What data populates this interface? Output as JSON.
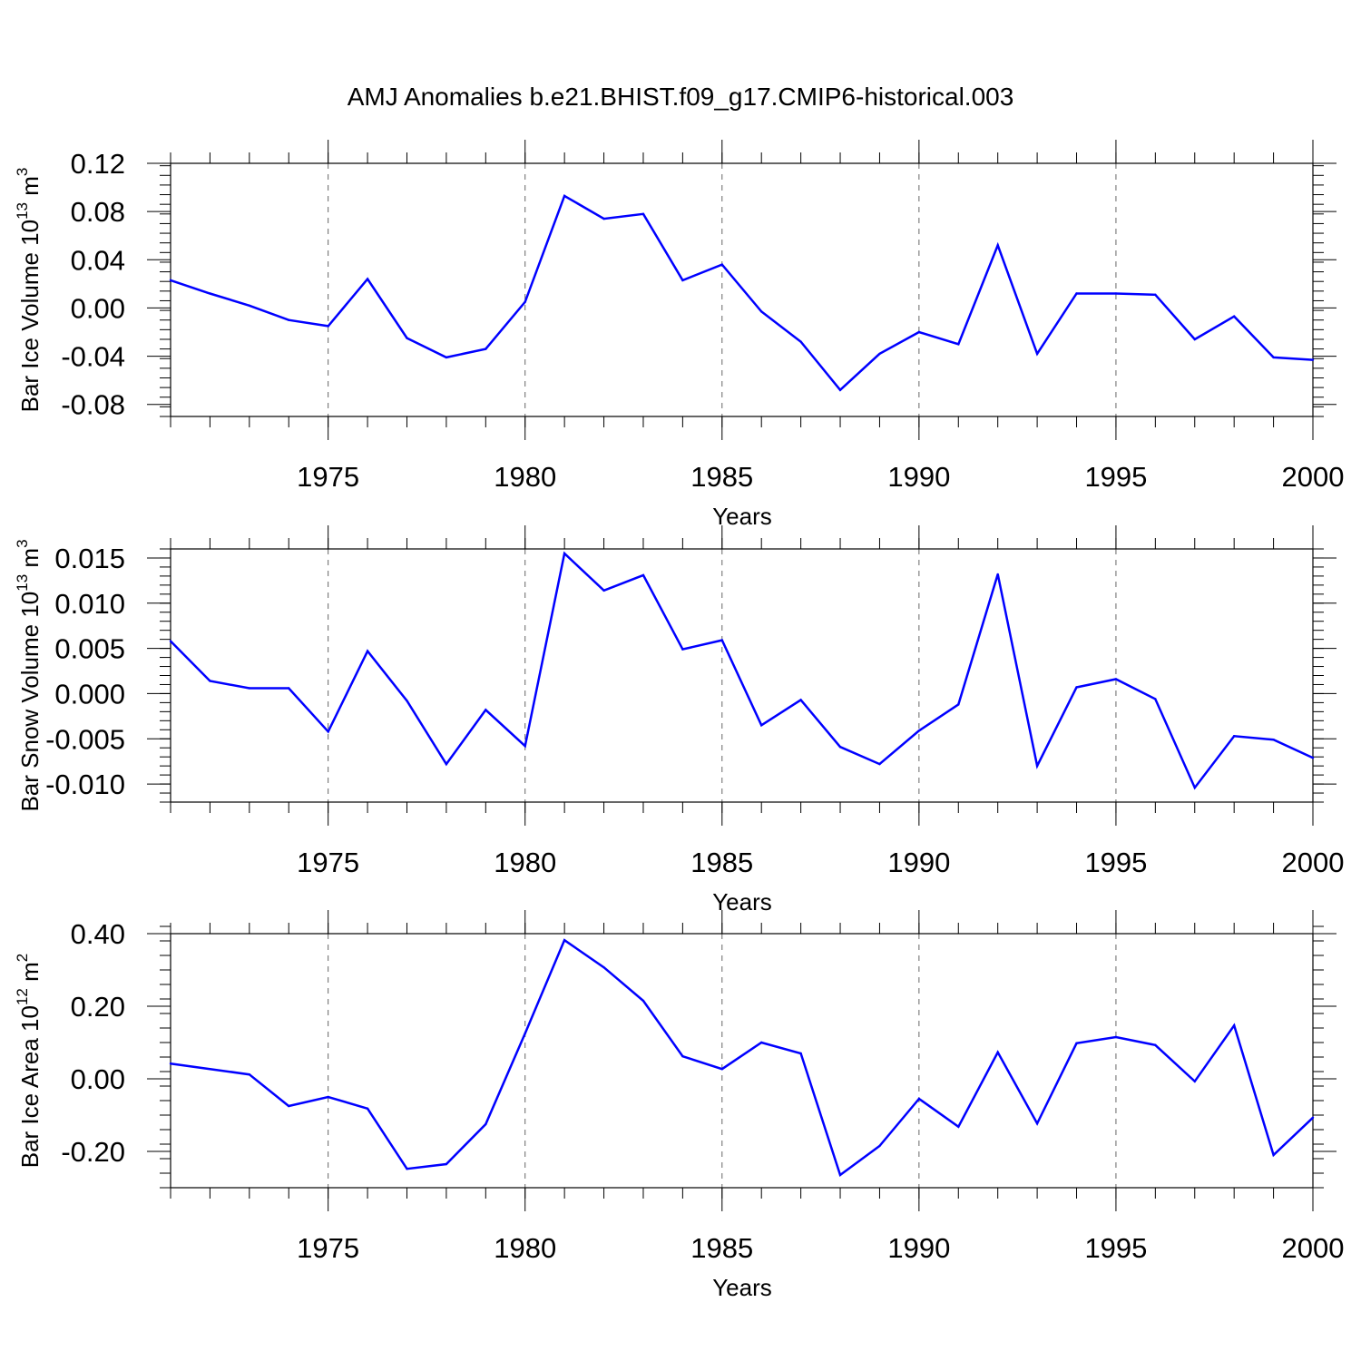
{
  "title": "AMJ Anomalies b.e21.BHIST.f09_g17.CMIP6-historical.003",
  "line_color": "#0000ff",
  "chart_data": [
    {
      "type": "line",
      "ylabel_parts": [
        "Bar Ice Volume 10",
        "13",
        " m",
        "3"
      ],
      "xlabel": "Years",
      "xlim": [
        1971,
        2000
      ],
      "ylim": [
        -0.09,
        0.12
      ],
      "x_ticks": [
        "1975",
        "1980",
        "1985",
        "1990",
        "1995",
        "2000"
      ],
      "y_ticks": [
        "0.12",
        "0.08",
        "0.04",
        "0.00",
        "-0.04",
        "-0.08"
      ],
      "x": [
        1971,
        1972,
        1973,
        1974,
        1975,
        1976,
        1977,
        1978,
        1979,
        1980,
        1981,
        1982,
        1983,
        1984,
        1985,
        1986,
        1987,
        1988,
        1989,
        1990,
        1991,
        1992,
        1993,
        1994,
        1995,
        1996,
        1997,
        1998,
        1999,
        2000
      ],
      "values": [
        0.023,
        0.012,
        0.002,
        -0.01,
        -0.015,
        0.024,
        -0.025,
        -0.041,
        -0.034,
        0.005,
        0.093,
        0.074,
        0.078,
        0.023,
        0.036,
        -0.003,
        -0.028,
        -0.068,
        -0.038,
        -0.02,
        -0.03,
        0.052,
        -0.038,
        0.012,
        0.012,
        0.011,
        -0.026,
        -0.007,
        -0.041,
        -0.043
      ]
    },
    {
      "type": "line",
      "ylabel_parts": [
        "Bar Snow Volume 10",
        "13",
        " m",
        "3"
      ],
      "xlabel": "Years",
      "xlim": [
        1971,
        2000
      ],
      "ylim": [
        -0.012,
        0.016
      ],
      "x_ticks": [
        "1975",
        "1980",
        "1985",
        "1990",
        "1995",
        "2000"
      ],
      "y_ticks": [
        "0.015",
        "0.010",
        "0.005",
        "0.000",
        "-0.005",
        "-0.010"
      ],
      "x": [
        1971,
        1972,
        1973,
        1974,
        1975,
        1976,
        1977,
        1978,
        1979,
        1980,
        1981,
        1982,
        1983,
        1984,
        1985,
        1986,
        1987,
        1988,
        1989,
        1990,
        1991,
        1992,
        1993,
        1994,
        1995,
        1996,
        1997,
        1998,
        1999,
        2000
      ],
      "values": [
        0.0058,
        0.0014,
        0.0006,
        0.0006,
        -0.0042,
        0.0047,
        -0.0008,
        -0.0078,
        -0.0018,
        -0.0058,
        0.0155,
        0.0114,
        0.0131,
        0.0049,
        0.0059,
        -0.0035,
        -0.0007,
        -0.0059,
        -0.0078,
        -0.0041,
        -0.0012,
        0.0132,
        -0.008,
        0.0007,
        0.0016,
        -0.0006,
        -0.0104,
        -0.0047,
        -0.0051,
        -0.0071
      ]
    },
    {
      "type": "line",
      "ylabel_parts": [
        "Bar Ice Area 10",
        "12",
        " m",
        "2"
      ],
      "xlabel": "Years",
      "xlim": [
        1971,
        2000
      ],
      "ylim": [
        -0.3,
        0.4
      ],
      "x_ticks": [
        "1975",
        "1980",
        "1985",
        "1990",
        "1995",
        "2000"
      ],
      "y_ticks": [
        "0.40",
        "0.20",
        "0.00",
        "-0.20"
      ],
      "x": [
        1971,
        1972,
        1973,
        1974,
        1975,
        1976,
        1977,
        1978,
        1979,
        1980,
        1981,
        1982,
        1983,
        1984,
        1985,
        1986,
        1987,
        1988,
        1989,
        1990,
        1991,
        1992,
        1993,
        1994,
        1995,
        1996,
        1997,
        1998,
        1999,
        2000
      ],
      "values": [
        0.042,
        0.027,
        0.012,
        -0.075,
        -0.05,
        -0.082,
        -0.248,
        -0.235,
        -0.125,
        0.125,
        0.382,
        0.307,
        0.215,
        0.062,
        0.027,
        0.1,
        0.07,
        -0.265,
        -0.185,
        -0.055,
        -0.132,
        0.073,
        -0.123,
        0.098,
        0.115,
        0.093,
        -0.007,
        0.147,
        -0.21,
        -0.107
      ]
    }
  ]
}
